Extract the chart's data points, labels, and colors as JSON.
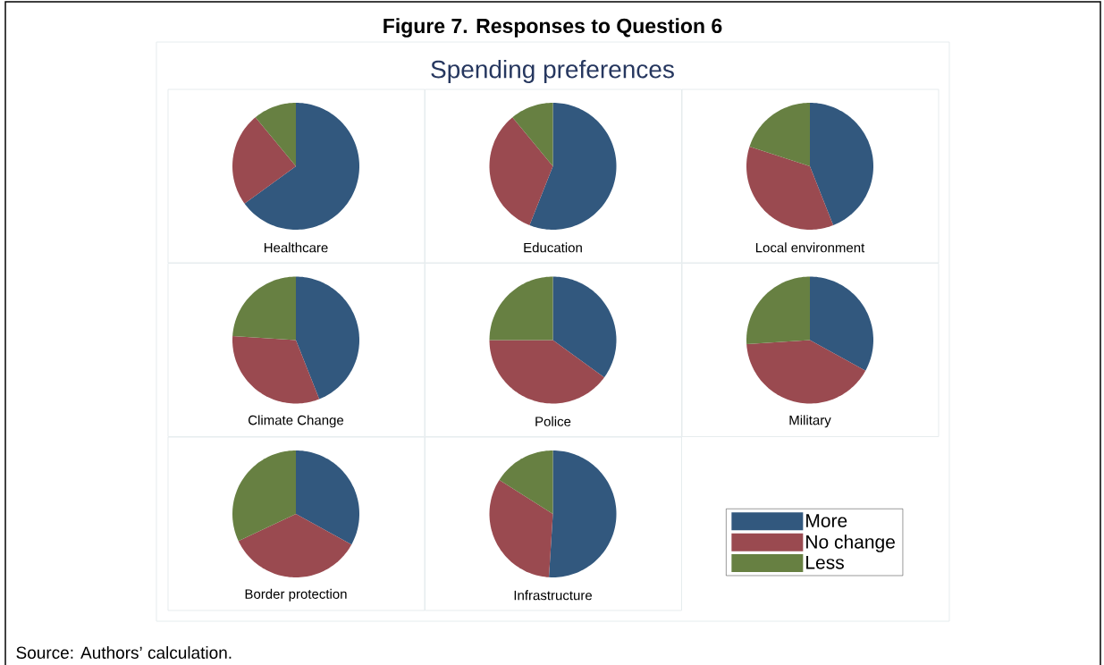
{
  "chart_data": [
    {
      "type": "other",
      "title": "Figure 7. Responses to Question 6",
      "subtitle": "Spending preferences",
      "annotations": [
        "Source: Authors’ calculation."
      ]
    },
    {
      "type": "pie",
      "title": "Healthcare",
      "categories": [
        null,
        null,
        null
      ],
      "values": [
        65,
        24,
        11
      ],
      "colors": [
        "#32587e",
        "#9a4a50",
        "#678042"
      ]
    },
    {
      "type": "pie",
      "title": "Education",
      "categories": [
        null,
        null,
        null
      ],
      "values": [
        56,
        33,
        11
      ],
      "colors": [
        "#32587e",
        "#9a4a50",
        "#678042"
      ]
    },
    {
      "type": "pie",
      "title": "Local environment",
      "categories": [
        null,
        null,
        null
      ],
      "values": [
        44,
        36,
        20
      ],
      "colors": [
        "#32587e",
        "#9a4a50",
        "#678042"
      ]
    },
    {
      "type": "pie",
      "title": "Climate Change",
      "categories": [
        null,
        null,
        null
      ],
      "values": [
        44,
        32,
        24
      ],
      "colors": [
        "#32587e",
        "#9a4a50",
        "#678042"
      ]
    },
    {
      "type": "pie",
      "title": "Police",
      "categories": [
        null,
        null,
        null
      ],
      "values": [
        35,
        40,
        25
      ],
      "colors": [
        "#32587e",
        "#9a4a50",
        "#678042"
      ]
    },
    {
      "type": "pie",
      "title": "Military",
      "categories": [
        null,
        null,
        null
      ],
      "values": [
        33,
        41,
        26
      ],
      "colors": [
        "#32587e",
        "#9a4a50",
        "#678042"
      ]
    },
    {
      "type": "pie",
      "title": "Border protection",
      "categories": [
        null,
        null,
        null
      ],
      "values": [
        33,
        35,
        32
      ],
      "colors": [
        "#32587e",
        "#9a4a50",
        "#678042"
      ]
    },
    {
      "type": "pie",
      "title": "Infrastructure",
      "categories": [
        "More",
        "No change",
        "Less"
      ],
      "values": [
        51,
        33,
        16
      ],
      "colors": [
        "#32587e",
        "#9a4a50",
        "#678042"
      ],
      "legend": "right"
    }
  ]
}
